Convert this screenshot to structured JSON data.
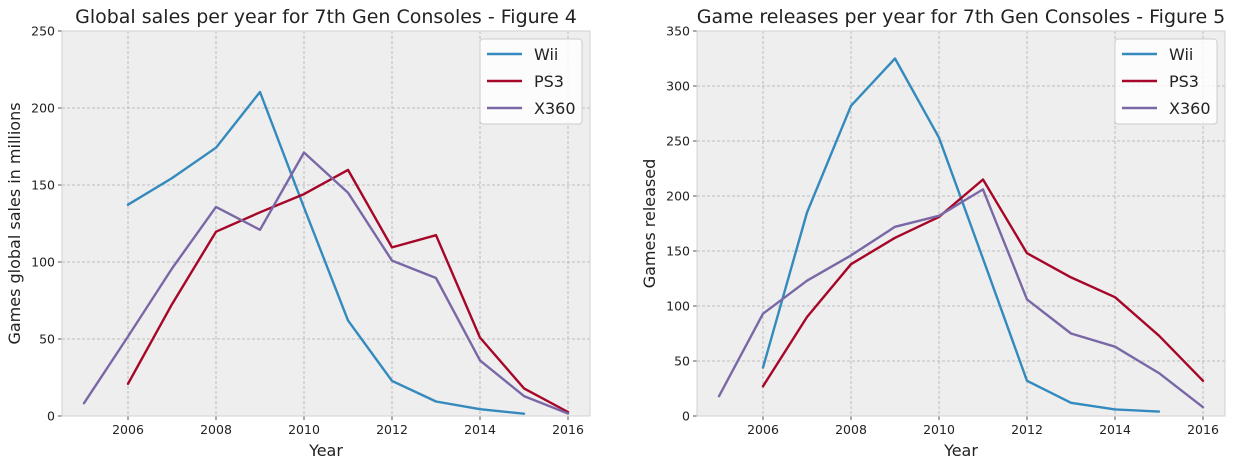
{
  "colors": {
    "Wii": "#348ABD",
    "PS3": "#A60628",
    "X360": "#7A68A6"
  },
  "chart_data": [
    {
      "type": "line",
      "title": "Global sales per year for 7th Gen Consoles - Figure 4",
      "xlabel": "Year",
      "ylabel": "Games global sales in millions",
      "xlim": [
        2004.5,
        2016.5
      ],
      "ylim": [
        0,
        250
      ],
      "xticks": [
        2006,
        2008,
        2010,
        2012,
        2014,
        2016
      ],
      "yticks": [
        0,
        50,
        100,
        150,
        200,
        250
      ],
      "grid": true,
      "legend": "top-right",
      "series": [
        {
          "name": "Wii",
          "x": [
            2006,
            2007,
            2008,
            2009,
            2010,
            2011,
            2012,
            2013,
            2014,
            2015
          ],
          "y": [
            137.2,
            154.5,
            174.2,
            210.4,
            135.4,
            62.1,
            22.8,
            9.4,
            4.4,
            1.5
          ]
        },
        {
          "name": "PS3",
          "x": [
            2006,
            2007,
            2008,
            2009,
            2010,
            2011,
            2012,
            2013,
            2014,
            2015,
            2016
          ],
          "y": [
            20.9,
            72.6,
            119.7,
            132.3,
            144.1,
            159.8,
            109.5,
            117.4,
            50.9,
            17.9,
            2.6
          ]
        },
        {
          "name": "X360",
          "x": [
            2005,
            2006,
            2007,
            2008,
            2009,
            2010,
            2011,
            2012,
            2013,
            2014,
            2015,
            2016
          ],
          "y": [
            8.3,
            51.6,
            95.8,
            135.8,
            120.9,
            171.1,
            145.0,
            100.9,
            89.6,
            36.1,
            12.9,
            1.6
          ]
        }
      ]
    },
    {
      "type": "line",
      "title": "Game releases per year for 7th Gen Consoles - Figure 5",
      "xlabel": "Year",
      "ylabel": "Games released",
      "xlim": [
        2004.5,
        2016.5
      ],
      "ylim": [
        0,
        350
      ],
      "xticks": [
        2006,
        2008,
        2010,
        2012,
        2014,
        2016
      ],
      "yticks": [
        0,
        50,
        100,
        150,
        200,
        250,
        300,
        350
      ],
      "grid": true,
      "legend": "top-right",
      "series": [
        {
          "name": "Wii",
          "x": [
            2006,
            2007,
            2008,
            2009,
            2010,
            2011,
            2012,
            2013,
            2014,
            2015
          ],
          "y": [
            44,
            185,
            282,
            325,
            253,
            143,
            32,
            12,
            6,
            4
          ]
        },
        {
          "name": "PS3",
          "x": [
            2006,
            2007,
            2008,
            2009,
            2010,
            2011,
            2012,
            2013,
            2014,
            2015,
            2016
          ],
          "y": [
            27,
            90,
            138,
            162,
            181,
            215,
            148,
            126,
            108,
            73,
            32
          ]
        },
        {
          "name": "X360",
          "x": [
            2005,
            2006,
            2007,
            2008,
            2009,
            2010,
            2011,
            2012,
            2013,
            2014,
            2015,
            2016
          ],
          "y": [
            18,
            93,
            123,
            146,
            172,
            182,
            206,
            106,
            75,
            63,
            39,
            8
          ]
        }
      ]
    }
  ]
}
